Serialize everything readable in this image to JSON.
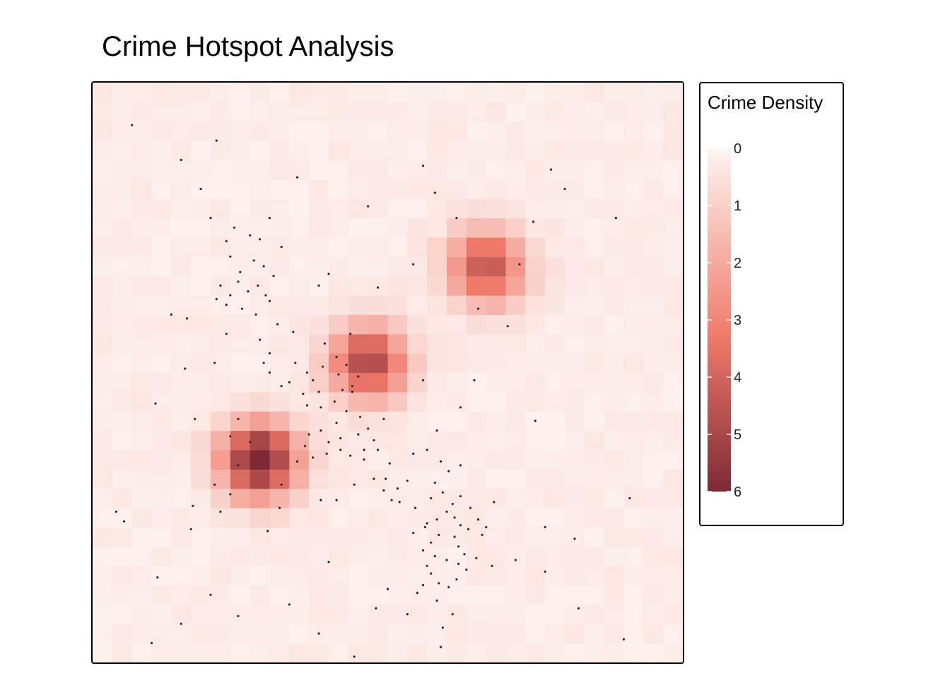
{
  "chart_data": {
    "type": "heatmap",
    "title": "Crime Hotspot Analysis",
    "xlabel": "",
    "ylabel": "",
    "grid": false,
    "axes_visible": false,
    "legend": {
      "title": "Crime Density",
      "placement": "right",
      "ticks": [
        "0",
        "1",
        "2",
        "3",
        "4",
        "5",
        "6"
      ],
      "range": [
        0,
        6
      ],
      "color_low": "#fdf4f1",
      "color_mid": "#f07a6a",
      "color_high": "#7d2a35"
    },
    "hotspots": [
      {
        "x": 8.5,
        "y": 10.5,
        "amplitude": 6.2
      },
      {
        "x": 14.0,
        "y": 15.5,
        "amplitude": 4.8
      },
      {
        "x": 20.0,
        "y": 20.5,
        "amplitude": 4.3
      }
    ],
    "points": [
      [
        2.0,
        27.8
      ],
      [
        4.5,
        26.0
      ],
      [
        5.5,
        24.5
      ],
      [
        6.0,
        23.0
      ],
      [
        6.8,
        21.8
      ],
      [
        7.2,
        22.5
      ],
      [
        8.0,
        22.1
      ],
      [
        8.5,
        21.9
      ],
      [
        7.0,
        21.0
      ],
      [
        7.5,
        20.2
      ],
      [
        8.2,
        20.8
      ],
      [
        8.7,
        20.5
      ],
      [
        9.2,
        20.0
      ],
      [
        9.6,
        21.5
      ],
      [
        6.5,
        19.5
      ],
      [
        7.0,
        19.0
      ],
      [
        7.4,
        19.7
      ],
      [
        7.9,
        19.2
      ],
      [
        8.4,
        19.5
      ],
      [
        8.8,
        19.0
      ],
      [
        6.8,
        18.5
      ],
      [
        7.6,
        18.3
      ],
      [
        8.3,
        18.0
      ],
      [
        9.0,
        18.7
      ],
      [
        6.3,
        18.8
      ],
      [
        9.4,
        17.5
      ],
      [
        6.8,
        17.0
      ],
      [
        11.5,
        19.5
      ],
      [
        12.0,
        20.1
      ],
      [
        6.2,
        15.5
      ],
      [
        8.7,
        15.5
      ],
      [
        9.0,
        15.0
      ],
      [
        10.0,
        14.5
      ],
      [
        10.3,
        15.5
      ],
      [
        10.9,
        15.0
      ],
      [
        11.2,
        14.6
      ],
      [
        11.7,
        15.3
      ],
      [
        12.5,
        14.9
      ],
      [
        12.9,
        15.4
      ],
      [
        13.5,
        14.8
      ],
      [
        13.2,
        14.3
      ],
      [
        12.7,
        14.1
      ],
      [
        11.5,
        14.0
      ],
      [
        10.7,
        13.9
      ],
      [
        10.9,
        13.3
      ],
      [
        11.6,
        13.2
      ],
      [
        12.3,
        13.5
      ],
      [
        12.9,
        13.0
      ],
      [
        13.6,
        12.7
      ],
      [
        12.4,
        12.4
      ],
      [
        11.6,
        12.0
      ],
      [
        11.0,
        11.8
      ],
      [
        12.0,
        11.4
      ],
      [
        12.6,
        11.6
      ],
      [
        13.5,
        11.8
      ],
      [
        14.0,
        12.1
      ],
      [
        14.3,
        11.5
      ],
      [
        13.8,
        11.0
      ],
      [
        12.6,
        11.0
      ],
      [
        11.9,
        10.8
      ],
      [
        11.2,
        10.6
      ],
      [
        13.1,
        10.7
      ],
      [
        13.8,
        10.5
      ],
      [
        10.4,
        10.4
      ],
      [
        10.8,
        11.2
      ],
      [
        9.6,
        14.3
      ],
      [
        9.0,
        16.0
      ],
      [
        8.5,
        16.7
      ],
      [
        14.8,
        12.6
      ],
      [
        14.5,
        11.0
      ],
      [
        13.2,
        14.0
      ],
      [
        12.4,
        15.8
      ],
      [
        11.8,
        16.5
      ],
      [
        10.2,
        17.1
      ],
      [
        17.5,
        12.0
      ],
      [
        17.0,
        11.0
      ],
      [
        16.3,
        10.8
      ],
      [
        16.0,
        9.4
      ],
      [
        15.5,
        9.0
      ],
      [
        14.8,
        8.9
      ],
      [
        15.2,
        8.4
      ],
      [
        16.4,
        8.0
      ],
      [
        17.0,
        7.2
      ],
      [
        17.6,
        6.6
      ],
      [
        17.2,
        6.2
      ],
      [
        16.8,
        5.8
      ],
      [
        17.4,
        5.5
      ],
      [
        18.0,
        5.3
      ],
      [
        18.6,
        5.1
      ],
      [
        18.9,
        5.6
      ],
      [
        18.6,
        6.0
      ],
      [
        18.4,
        6.5
      ],
      [
        18.7,
        7.1
      ],
      [
        18.4,
        7.5
      ],
      [
        18.0,
        7.8
      ],
      [
        17.5,
        7.4
      ],
      [
        17.2,
        8.5
      ],
      [
        17.8,
        8.8
      ],
      [
        18.3,
        8.2
      ],
      [
        18.7,
        8.6
      ],
      [
        19.2,
        8.0
      ],
      [
        19.6,
        7.4
      ],
      [
        19.1,
        6.9
      ],
      [
        19.5,
        5.4
      ],
      [
        19.0,
        4.8
      ],
      [
        18.5,
        4.3
      ],
      [
        18.1,
        3.9
      ],
      [
        17.6,
        4.1
      ],
      [
        17.2,
        4.6
      ],
      [
        16.8,
        4.0
      ],
      [
        17.0,
        5.0
      ],
      [
        16.3,
        6.7
      ],
      [
        16.9,
        7.0
      ],
      [
        19.8,
        6.6
      ],
      [
        20.4,
        8.3
      ],
      [
        17.4,
        9.3
      ],
      [
        18.1,
        9.9
      ],
      [
        17.7,
        10.4
      ],
      [
        18.7,
        10.2
      ],
      [
        20.0,
        7.0
      ],
      [
        20.3,
        5.0
      ],
      [
        21.5,
        5.3
      ],
      [
        23.0,
        7.0
      ],
      [
        16.5,
        3.6
      ],
      [
        17.8,
        1.8
      ],
      [
        18.3,
        2.5
      ],
      [
        17.5,
        3.2
      ],
      [
        16.0,
        2.5
      ],
      [
        14.4,
        2.8
      ],
      [
        15.6,
        8.3
      ],
      [
        15.1,
        10.3
      ],
      [
        14.9,
        9.5
      ],
      [
        14.3,
        9.5
      ],
      [
        13.3,
        9.2
      ],
      [
        12.4,
        8.4
      ],
      [
        11.6,
        8.4
      ],
      [
        9.5,
        8.0
      ],
      [
        8.0,
        11.4
      ],
      [
        7.4,
        10.2
      ],
      [
        6.2,
        9.2
      ],
      [
        5.1,
        8.1
      ],
      [
        7.0,
        8.7
      ],
      [
        6.5,
        7.8
      ],
      [
        7.0,
        11.7
      ],
      [
        5.0,
        6.9
      ],
      [
        1.2,
        7.8
      ],
      [
        1.6,
        7.3
      ],
      [
        3.3,
        4.4
      ],
      [
        7.4,
        2.4
      ],
      [
        12.0,
        5.2
      ],
      [
        15.0,
        3.8
      ],
      [
        23.0,
        4.7
      ],
      [
        24.5,
        6.4
      ],
      [
        24.7,
        2.8
      ],
      [
        27.0,
        1.2
      ],
      [
        27.3,
        8.5
      ],
      [
        26.6,
        23.0
      ],
      [
        24.0,
        24.5
      ],
      [
        23.3,
        25.5
      ],
      [
        22.4,
        22.8
      ],
      [
        21.1,
        17.4
      ],
      [
        16.3,
        20.6
      ],
      [
        19.6,
        18.3
      ],
      [
        21.7,
        20.6
      ],
      [
        18.5,
        23.0
      ],
      [
        17.4,
        24.3
      ],
      [
        16.8,
        25.7
      ],
      [
        14.0,
        23.6
      ],
      [
        10.4,
        25.1
      ],
      [
        6.3,
        27.0
      ],
      [
        9.0,
        23.0
      ],
      [
        14.5,
        19.4
      ],
      [
        13.1,
        17.0
      ],
      [
        16.8,
        14.6
      ],
      [
        19.4,
        14.6
      ],
      [
        22.5,
        12.5
      ],
      [
        18.7,
        13.2
      ],
      [
        17.7,
        0.8
      ],
      [
        13.3,
        0.3
      ],
      [
        11.5,
        1.5
      ],
      [
        10.0,
        3.0
      ],
      [
        6.0,
        3.5
      ],
      [
        4.5,
        2.0
      ],
      [
        3.0,
        1.0
      ],
      [
        5.2,
        12.6
      ],
      [
        4.7,
        15.2
      ],
      [
        4.8,
        17.8
      ],
      [
        3.2,
        13.4
      ],
      [
        7.4,
        12.6
      ],
      [
        4.0,
        18.0
      ],
      [
        9.6,
        9.2
      ],
      [
        8.9,
        6.8
      ]
    ]
  }
}
